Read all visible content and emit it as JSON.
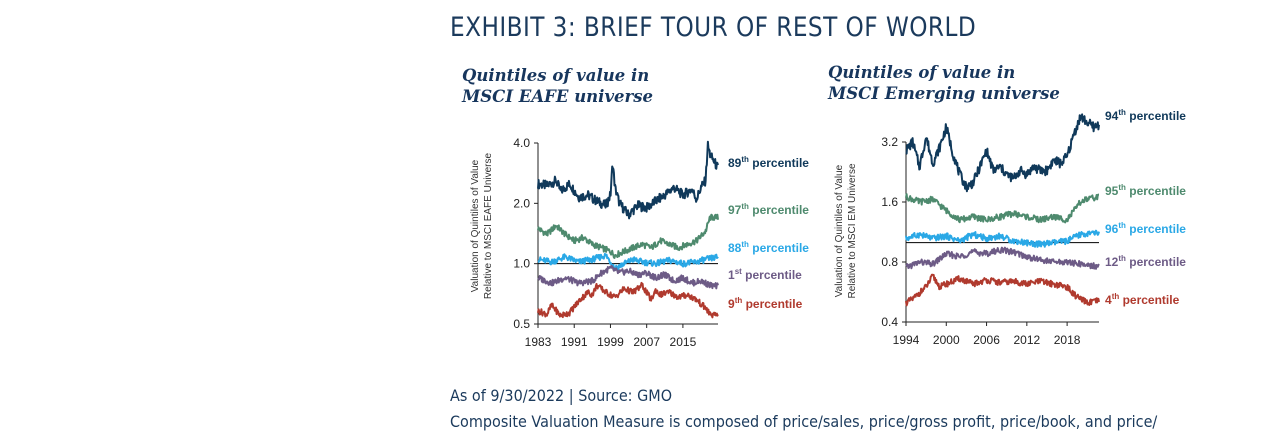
{
  "exhibit_title": "EXHIBIT 3: BRIEF TOUR OF REST OF WORLD",
  "source": "As of 9/30/2022 | Source: GMO",
  "footnote": "Composite Valuation Measure is composed of price/sales, price/gross profit, price/book, and price/",
  "colors": {
    "navy": "#10395a",
    "green": "#4e8a6e",
    "light_blue": "#2aa8e6",
    "purple": "#6d5b86",
    "red": "#b03a2e",
    "axis": "#222222"
  },
  "chart_data": [
    {
      "type": "line",
      "title_lines": [
        "Quintiles of value in",
        "MSCI EAFE universe"
      ],
      "ylabel_lines": [
        "Valuation of Quintiles of Value",
        "Relative to MSCI EAFE Universe"
      ],
      "xlabel": "",
      "y_scale": "log",
      "ylim": [
        0.5,
        4.0
      ],
      "yticks": [
        0.5,
        1.0,
        2.0,
        4.0
      ],
      "ytick_labels": [
        "0.5",
        "1.0",
        "2.0",
        "4.0"
      ],
      "xlim": [
        1983,
        2022.75
      ],
      "xticks": [
        1983,
        1991,
        1999,
        2007,
        2015
      ],
      "xtick_labels": [
        "1983",
        "1991",
        "1999",
        "2007",
        "2015"
      ],
      "reference_line": 1.0,
      "series": [
        {
          "label_num": "89",
          "label_sup": "th",
          "label_text": " percentile",
          "color": "#10395a",
          "x": [
            1983,
            1985,
            1987,
            1988,
            1990,
            1992,
            1994,
            1996,
            1998,
            1999,
            1999.5,
            2000,
            2001,
            2003,
            2005,
            2007,
            2009,
            2011,
            2013,
            2015,
            2017,
            2018,
            2019,
            2020,
            2020.5,
            2021,
            2022,
            2022.75
          ],
          "y": [
            2.5,
            2.45,
            2.6,
            2.3,
            2.5,
            2.15,
            2.2,
            2.05,
            1.95,
            2.2,
            3.2,
            2.4,
            2.0,
            1.75,
            1.95,
            1.9,
            2.05,
            2.2,
            2.4,
            2.2,
            2.35,
            2.1,
            2.4,
            2.6,
            3.9,
            3.5,
            3.2,
            3.0
          ]
        },
        {
          "label_num": "97",
          "label_sup": "th",
          "label_text": " percentile",
          "color": "#4e8a6e",
          "x": [
            1983,
            1985,
            1987,
            1989,
            1991,
            1993,
            1995,
            1997,
            1999,
            2000,
            2002,
            2004,
            2006,
            2008,
            2010,
            2012,
            2014,
            2016,
            2018,
            2020,
            2021,
            2022.75
          ],
          "y": [
            1.5,
            1.4,
            1.55,
            1.4,
            1.3,
            1.35,
            1.25,
            1.2,
            1.15,
            1.1,
            1.15,
            1.2,
            1.25,
            1.2,
            1.3,
            1.25,
            1.2,
            1.25,
            1.3,
            1.45,
            1.7,
            1.7
          ]
        },
        {
          "label_num": "88",
          "label_sup": "th",
          "label_text": " percentile",
          "color": "#2aa8e6",
          "x": [
            1983,
            1986,
            1989,
            1992,
            1995,
            1998,
            2000,
            2002,
            2004,
            2006,
            2009,
            2012,
            2015,
            2018,
            2020,
            2022.75
          ],
          "y": [
            1.05,
            1.02,
            1.08,
            1.02,
            1.05,
            1.1,
            0.95,
            1.0,
            1.05,
            1.02,
            1.0,
            1.04,
            1.0,
            1.02,
            1.05,
            1.08
          ]
        },
        {
          "label_num": "1",
          "label_sup": "st",
          "label_text": " percentile",
          "color": "#6d5b86",
          "x": [
            1983,
            1986,
            1989,
            1992,
            1995,
            1997,
            1999,
            2001,
            2003,
            2005,
            2007,
            2009,
            2011,
            2013,
            2015,
            2017,
            2019,
            2021,
            2022.75
          ],
          "y": [
            0.85,
            0.8,
            0.85,
            0.8,
            0.82,
            0.9,
            0.95,
            0.9,
            0.92,
            0.88,
            0.9,
            0.85,
            0.88,
            0.82,
            0.85,
            0.8,
            0.82,
            0.78,
            0.77
          ]
        },
        {
          "label_num": "9",
          "label_sup": "th",
          "label_text": " percentile",
          "color": "#b03a2e",
          "x": [
            1983,
            1985,
            1986,
            1988,
            1990,
            1992,
            1994,
            1995,
            1996,
            1998,
            2000,
            2002,
            2004,
            2006,
            2008,
            2009,
            2010,
            2012,
            2014,
            2016,
            2018,
            2020,
            2021,
            2022,
            2022.75
          ],
          "y": [
            0.58,
            0.56,
            0.62,
            0.55,
            0.57,
            0.65,
            0.72,
            0.7,
            0.78,
            0.72,
            0.68,
            0.75,
            0.72,
            0.78,
            0.66,
            0.74,
            0.7,
            0.72,
            0.68,
            0.7,
            0.66,
            0.6,
            0.56,
            0.55,
            0.56
          ]
        }
      ]
    },
    {
      "type": "line",
      "title_lines": [
        "Quintiles of value in",
        "MSCI Emerging universe"
      ],
      "ylabel_lines": [
        "Valuation of Quintiles of Value",
        "Relative to MSCI EM Universe"
      ],
      "xlabel": "",
      "y_scale": "log",
      "ylim": [
        0.4,
        4.6
      ],
      "yticks": [
        0.4,
        0.8,
        1.6,
        3.2
      ],
      "ytick_labels": [
        "0.4",
        "0.8",
        "1.6",
        "3.2"
      ],
      "xlim": [
        1994,
        2022.75
      ],
      "xticks": [
        1994,
        2000,
        2006,
        2012,
        2018
      ],
      "xtick_labels": [
        "1994",
        "2000",
        "2006",
        "2012",
        "2018"
      ],
      "reference_line": 1.0,
      "series": [
        {
          "label_num": "94",
          "label_sup": "th",
          "label_text": " percentile",
          "color": "#10395a",
          "x": [
            1994,
            1995,
            1996,
            1997,
            1998,
            1999,
            2000,
            2001,
            2002,
            2003,
            2004,
            2005,
            2006,
            2007,
            2008,
            2009,
            2010,
            2011,
            2012,
            2013,
            2014,
            2015,
            2016,
            2017,
            2018,
            2019,
            2020,
            2021,
            2022,
            2022.75
          ],
          "y": [
            2.9,
            3.2,
            2.4,
            3.4,
            2.5,
            3.0,
            3.8,
            2.8,
            2.2,
            1.9,
            2.0,
            2.4,
            2.9,
            2.3,
            2.4,
            2.2,
            2.1,
            2.3,
            2.2,
            2.4,
            2.3,
            2.3,
            2.6,
            2.5,
            2.7,
            3.5,
            4.3,
            4.0,
            3.8,
            3.9
          ]
        },
        {
          "label_num": "95",
          "label_sup": "th",
          "label_text": " percentile",
          "color": "#4e8a6e",
          "x": [
            1994,
            1996,
            1998,
            2000,
            2002,
            2004,
            2006,
            2008,
            2010,
            2012,
            2014,
            2016,
            2018,
            2020,
            2021,
            2022.75
          ],
          "y": [
            1.7,
            1.6,
            1.65,
            1.45,
            1.3,
            1.35,
            1.3,
            1.35,
            1.4,
            1.35,
            1.3,
            1.35,
            1.3,
            1.6,
            1.65,
            1.7
          ]
        },
        {
          "label_num": "96",
          "label_sup": "th",
          "label_text": " percentile",
          "color": "#2aa8e6",
          "x": [
            1994,
            1996,
            1998,
            2000,
            2002,
            2004,
            2006,
            2008,
            2010,
            2012,
            2014,
            2016,
            2018,
            2020,
            2022.75
          ],
          "y": [
            1.05,
            1.1,
            1.05,
            1.08,
            1.02,
            1.1,
            1.05,
            1.08,
            1.02,
            1.0,
            0.98,
            1.0,
            1.02,
            1.1,
            1.12
          ]
        },
        {
          "label_num": "12",
          "label_sup": "th",
          "label_text": " percentile",
          "color": "#6d5b86",
          "x": [
            1994,
            1996,
            1998,
            2000,
            2002,
            2004,
            2006,
            2008,
            2010,
            2012,
            2014,
            2016,
            2018,
            2020,
            2022.75
          ],
          "y": [
            0.75,
            0.8,
            0.78,
            0.88,
            0.85,
            0.9,
            0.88,
            0.92,
            0.9,
            0.85,
            0.82,
            0.8,
            0.8,
            0.78,
            0.76
          ]
        },
        {
          "label_num": "4",
          "label_sup": "th",
          "label_text": " percentile",
          "color": "#b03a2e",
          "x": [
            1994,
            1995,
            1996,
            1997,
            1998,
            1999,
            2000,
            2002,
            2004,
            2006,
            2008,
            2010,
            2012,
            2014,
            2016,
            2018,
            2019,
            2020,
            2021,
            2022.75
          ],
          "y": [
            0.5,
            0.52,
            0.56,
            0.6,
            0.68,
            0.6,
            0.62,
            0.66,
            0.62,
            0.65,
            0.63,
            0.64,
            0.62,
            0.64,
            0.62,
            0.6,
            0.55,
            0.52,
            0.5,
            0.51
          ]
        }
      ]
    }
  ]
}
